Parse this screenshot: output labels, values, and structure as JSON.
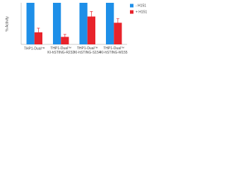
{
  "chart_data": {
    "type": "bar",
    "y_label": "% Activity",
    "categories": [
      "THP1-Dual™",
      "THP1-Dual™ KI-hSTING-R232",
      "THP1-Dual™ KI-hSTING-S154",
      "THP1-Dual™ KI-hSTING-M155"
    ],
    "series": [
      {
        "name": "- H151",
        "color": "#1e8fe8",
        "values": [
          100,
          100,
          100,
          100
        ]
      },
      {
        "name": "+ H151",
        "color": "#e8232b",
        "values": [
          29,
          18,
          67,
          52
        ],
        "errors": [
          10,
          6,
          12,
          10
        ]
      }
    ],
    "ylim": [
      0,
      100
    ],
    "legend": "right"
  }
}
